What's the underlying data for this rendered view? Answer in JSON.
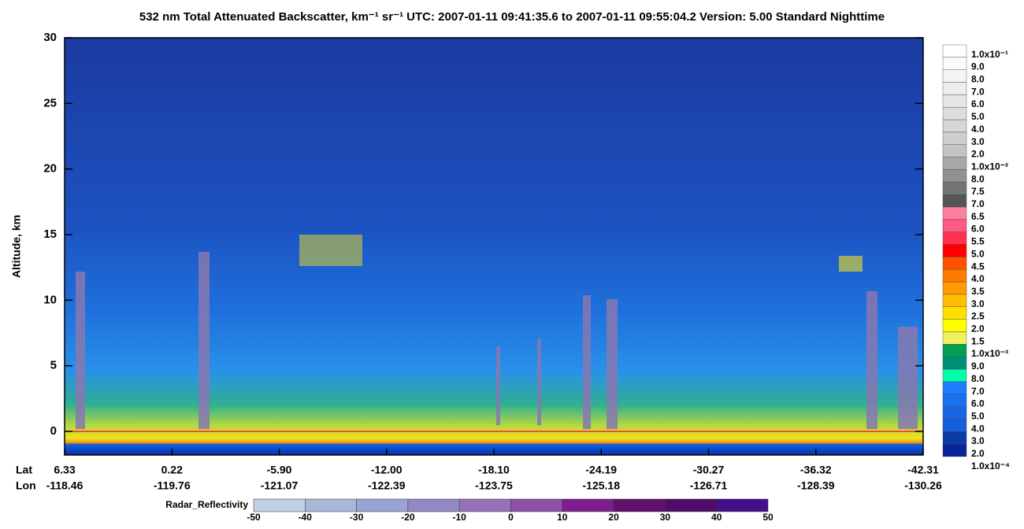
{
  "chart_data": {
    "type": "heatmap",
    "title": "532 nm Total Attenuated Backscatter, km⁻¹ sr⁻¹    UTC:  2007-01-11 09:41:35.6  to  2007-01-11 09:55:04.2    Version: 5.00  Standard  Nighttime",
    "y_label": "Altitude, km",
    "ylim": [
      -1.8,
      30
    ],
    "yticks": [
      0,
      5,
      10,
      15,
      20,
      25,
      30
    ],
    "x_row_names": [
      "Lat",
      "Lon"
    ],
    "lat": [
      "6.33",
      "0.22",
      "-5.90",
      "-12.00",
      "-18.10",
      "-24.19",
      "-30.27",
      "-36.32",
      "-42.31"
    ],
    "lon": [
      "-118.46",
      "-119.76",
      "-121.07",
      "-122.39",
      "-123.75",
      "-125.18",
      "-126.71",
      "-128.39",
      "-130.26"
    ],
    "colorbar": {
      "labels": [
        "1.0x10⁻¹",
        "9.0",
        "8.0",
        "7.0",
        "6.0",
        "5.0",
        "4.0",
        "3.0",
        "2.0",
        "1.0x10⁻²",
        "8.0",
        "7.5",
        "7.0",
        "6.5",
        "6.0",
        "5.5",
        "5.0",
        "4.5",
        "4.0",
        "3.5",
        "3.0",
        "2.5",
        "2.0",
        "1.5",
        "1.0x10⁻³",
        "9.0",
        "8.0",
        "7.0",
        "6.0",
        "5.0",
        "4.0",
        "3.0",
        "2.0",
        "1.0x10⁻⁴"
      ],
      "colors": [
        "#ffffff",
        "#fafafa",
        "#f5f5f5",
        "#eeeeee",
        "#e6e6e6",
        "#dedede",
        "#d6d6d6",
        "#cecece",
        "#c4c4c4",
        "#a8a8a8",
        "#919191",
        "#757575",
        "#555555",
        "#ff7fa0",
        "#ff5a82",
        "#ff3050",
        "#ff0000",
        "#ff5200",
        "#ff7a00",
        "#ff9a00",
        "#ffbe00",
        "#ffe000",
        "#ffff00",
        "#f0f060",
        "#00a050",
        "#009078",
        "#00ffaa",
        "#1e7cff",
        "#1a70f0",
        "#1866e6",
        "#1560dc",
        "#0a3ca8",
        "#08249c"
      ]
    },
    "radar": {
      "label": "Radar_Reflectivity",
      "ticks": [
        -50,
        -40,
        -30,
        -20,
        -10,
        0,
        10,
        20,
        30,
        40,
        50
      ],
      "colors": [
        "#c0cfe2",
        "#a8b8d8",
        "#98a4d2",
        "#9388c4",
        "#9670b8",
        "#8f50aa",
        "#7e1e8e",
        "#62106e",
        "#500c68",
        "#44108a"
      ]
    }
  }
}
